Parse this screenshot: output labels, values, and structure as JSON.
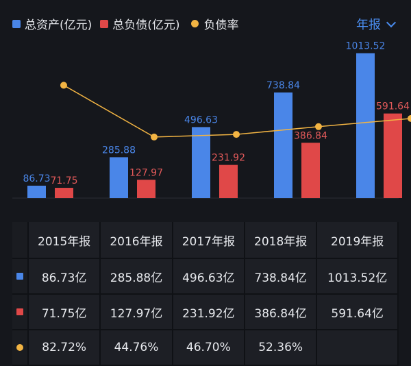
{
  "legend": {
    "assets": "总资产(亿元)",
    "liabilities": "总负债(亿元)",
    "ratio": "负债率"
  },
  "period_selector": {
    "label": "年报"
  },
  "colors": {
    "assets": "#4a86e8",
    "liabilities": "#e04848",
    "ratio": "#f2b443"
  },
  "chart_data": {
    "type": "bar",
    "categories": [
      "2015年报",
      "2016年报",
      "2017年报",
      "2018年报",
      "2019年报"
    ],
    "series": [
      {
        "name": "总资产(亿元)",
        "kind": "bar",
        "values": [
          86.73,
          285.88,
          496.63,
          738.84,
          1013.52
        ],
        "labels": [
          "86.73",
          "285.88",
          "496.63",
          "738.84",
          "1013.52"
        ]
      },
      {
        "name": "总负债(亿元)",
        "kind": "bar",
        "values": [
          71.75,
          127.97,
          231.92,
          386.84,
          591.64
        ],
        "labels": [
          "71.75",
          "127.97",
          "231.92",
          "386.84",
          "591.64"
        ]
      },
      {
        "name": "负债率",
        "kind": "line",
        "values": [
          82.72,
          44.76,
          46.7,
          52.36,
          58.37
        ]
      }
    ],
    "ylim": [
      0,
      1050
    ],
    "ratio_ylim": [
      0,
      100
    ]
  },
  "table": {
    "headers": [
      "2015年报",
      "2016年报",
      "2017年报",
      "2018年报",
      "2019年报"
    ],
    "rows": [
      {
        "key": "assets",
        "cells": [
          "86.73亿",
          "285.88亿",
          "496.63亿",
          "738.84亿",
          "1013.52亿"
        ]
      },
      {
        "key": "liabilities",
        "cells": [
          "71.75亿",
          "127.97亿",
          "231.92亿",
          "386.84亿",
          "591.64亿"
        ]
      },
      {
        "key": "ratio",
        "cells": [
          "82.72%",
          "44.76%",
          "46.70%",
          "52.36%",
          ""
        ]
      }
    ]
  }
}
